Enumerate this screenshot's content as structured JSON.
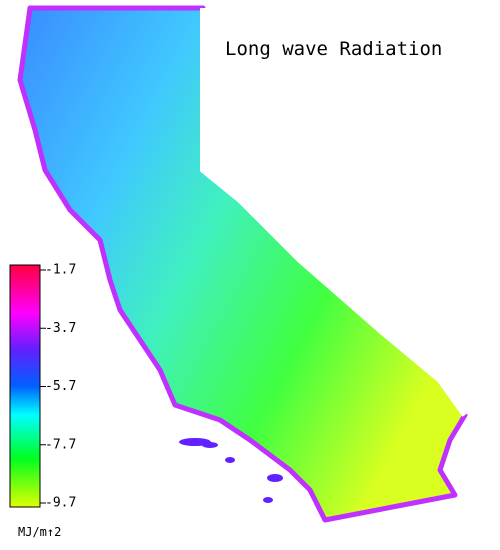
{
  "title": "Long wave Radiation",
  "legend": {
    "range": [
      -9.7,
      -1.7
    ],
    "ticks": [
      -1.7,
      -3.7,
      -5.7,
      -7.7,
      -9.7
    ],
    "unit": "MJ/m↑2"
  }
}
